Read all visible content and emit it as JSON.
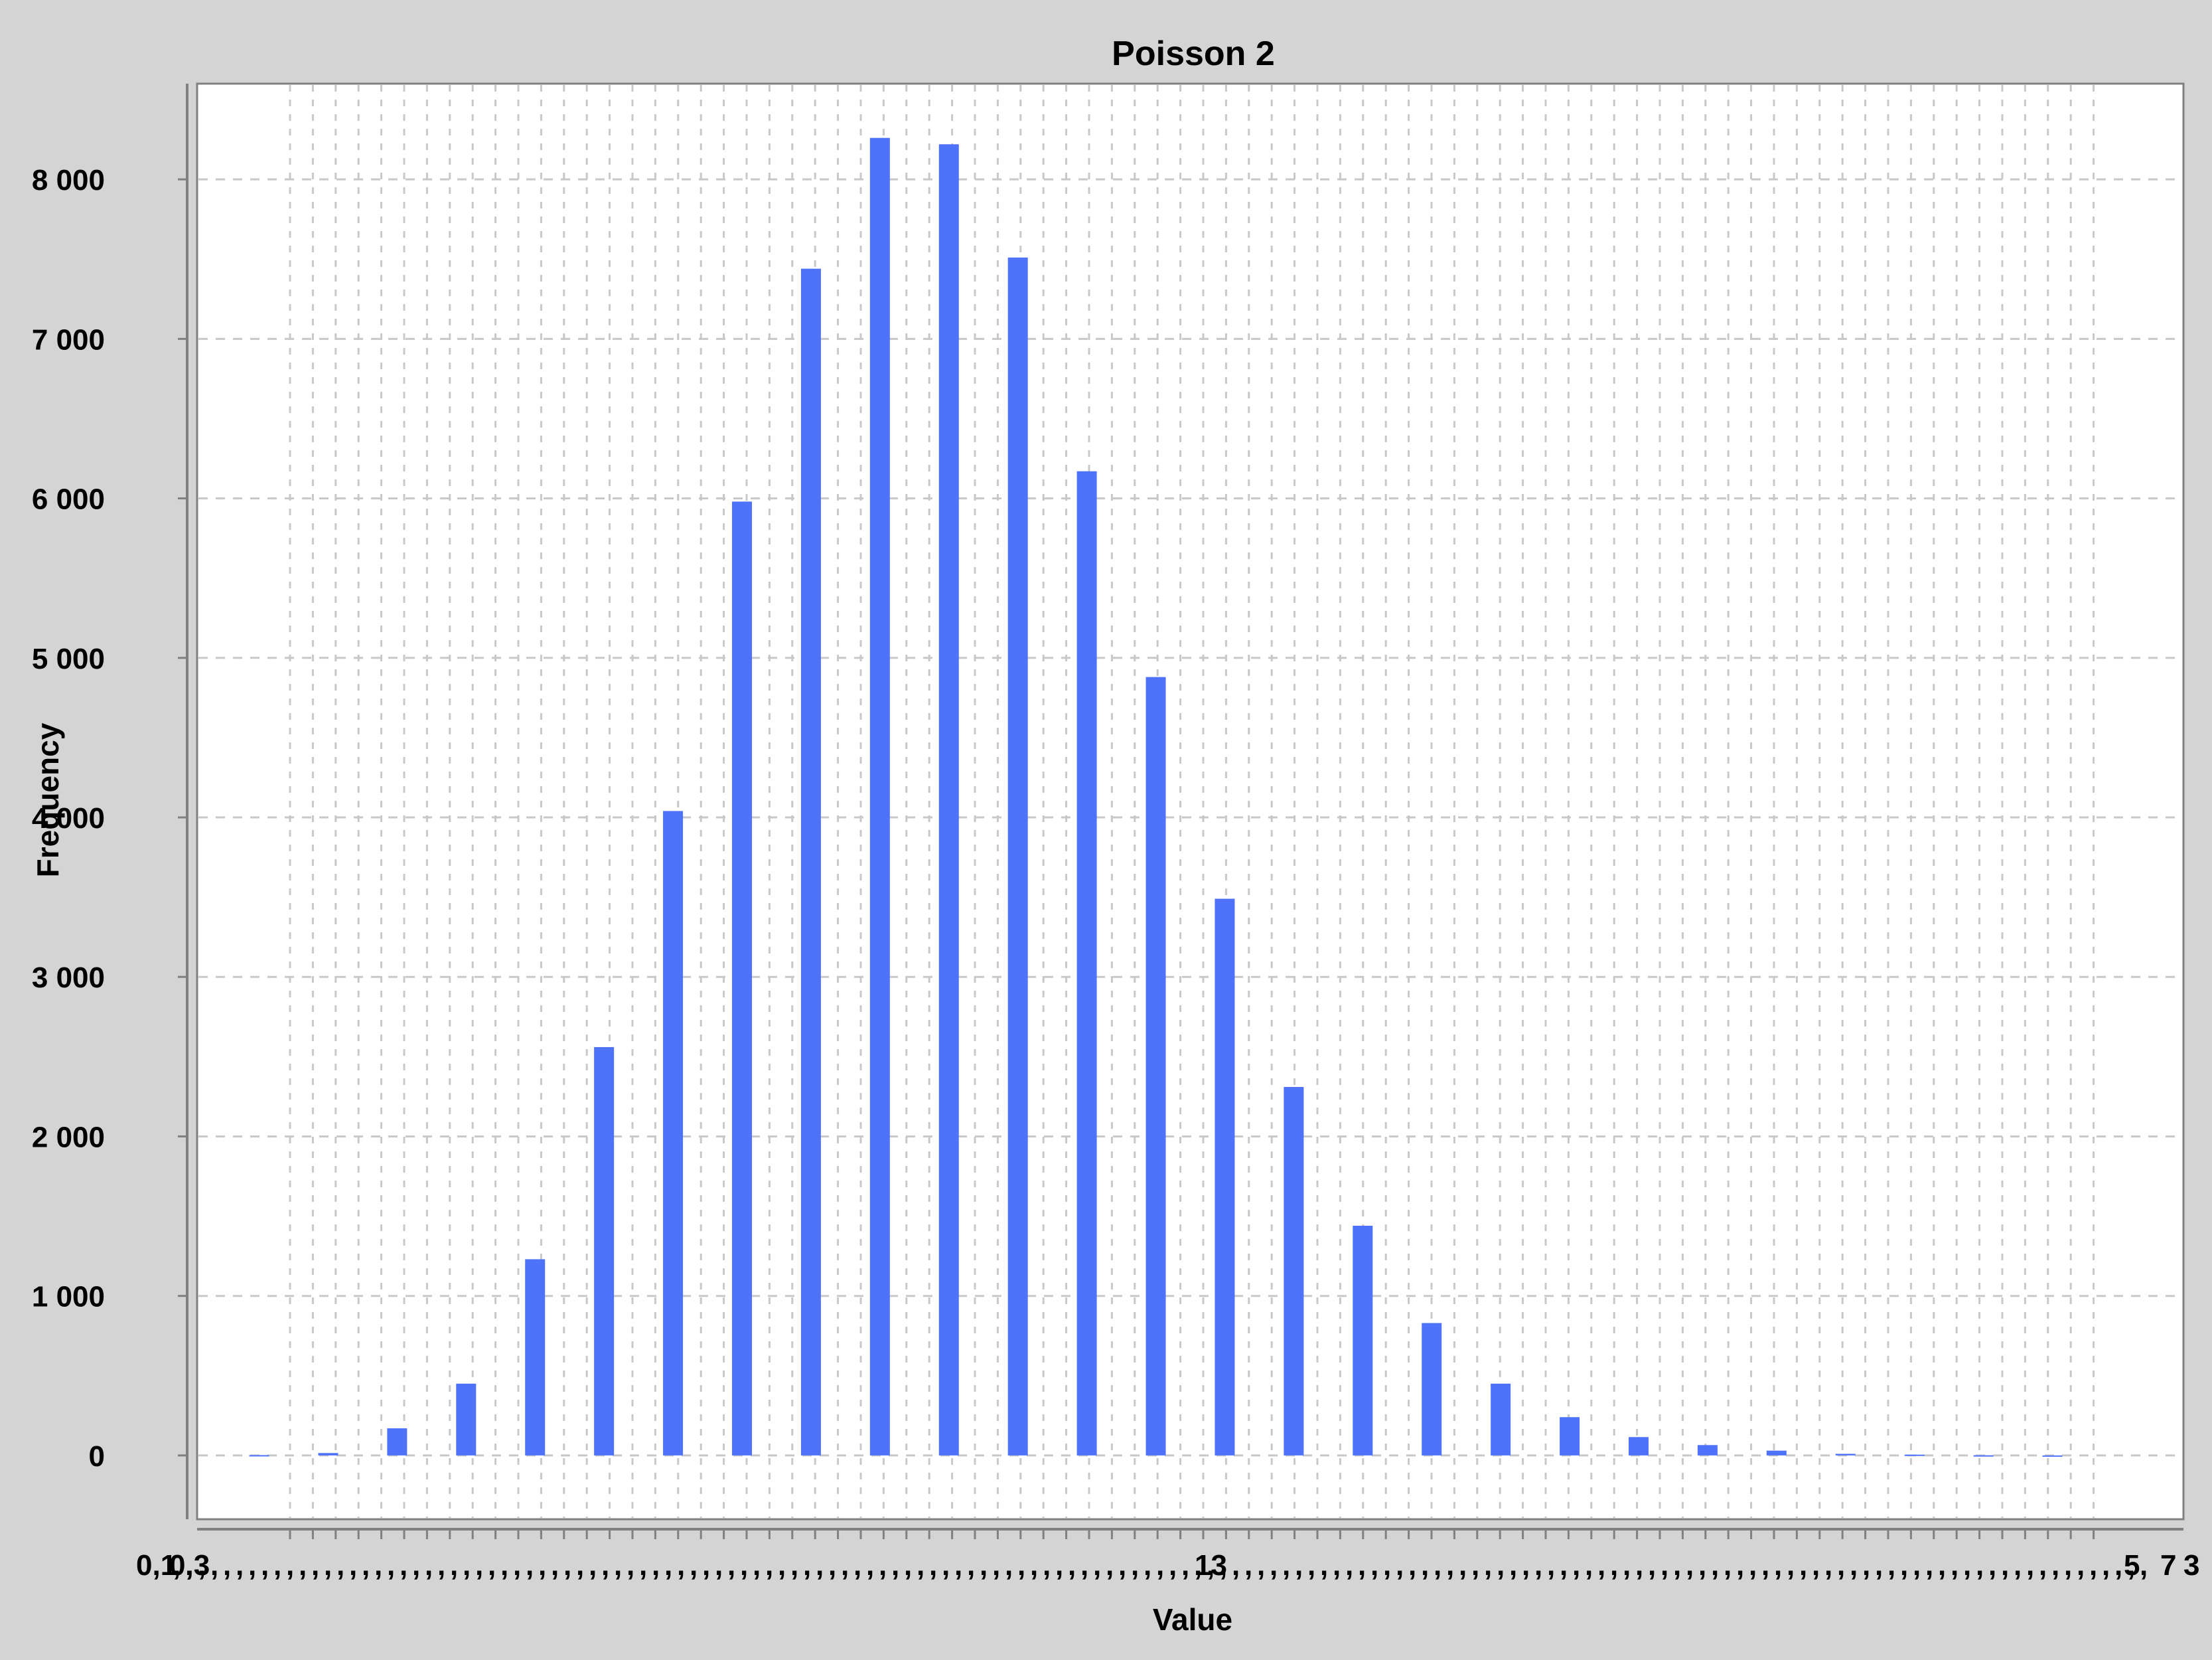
{
  "chart_data": {
    "type": "bar",
    "title": "Poisson 2",
    "xlabel": "Value",
    "ylabel": "Frequency",
    "ylim": [
      -400,
      8600
    ],
    "xlim": [
      0.1,
      28.9
    ],
    "y_ticks": [
      0,
      1000,
      2000,
      3000,
      4000,
      5000,
      6000,
      7000,
      8000
    ],
    "y_tick_labels": [
      "0",
      "1 000",
      "2 000",
      "3 000",
      "4 000",
      "5 000",
      "6 000",
      "7 000",
      "8 000"
    ],
    "x_tick_labels_note": "overlapping",
    "x_tick_labels": [
      "0,1",
      "0,3",
      "13",
      "5",
      "7",
      "3"
    ],
    "x": [
      1,
      2,
      3,
      4,
      5,
      6,
      7,
      8,
      9,
      10,
      11,
      12,
      13,
      14,
      15,
      16,
      17,
      18,
      19,
      20,
      21,
      22,
      23,
      24,
      25,
      26,
      27
    ],
    "values": [
      2,
      15,
      170,
      450,
      1230,
      2560,
      4040,
      5980,
      7440,
      8260,
      8220,
      7510,
      6170,
      4880,
      3490,
      2310,
      1440,
      830,
      450,
      240,
      115,
      65,
      30,
      10,
      5,
      1,
      0
    ],
    "grid": true,
    "legend": "none",
    "colors": {
      "bar": "#4f72fa",
      "background": "#d4d4d4",
      "plot_background": "#ffffff",
      "grid": "#c8c8c8",
      "axis": "#808080",
      "text": "#000000"
    }
  }
}
